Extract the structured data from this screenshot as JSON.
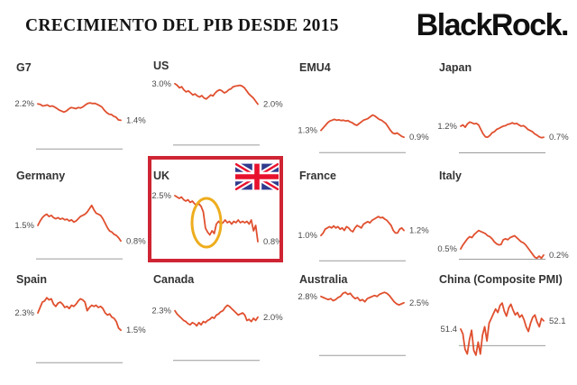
{
  "header": {
    "title": "CRECIMIENTO DEL PIB DESDE 2015",
    "logo_text": "BlackRock."
  },
  "colors": {
    "line": "#e0502f",
    "axis": "#9b9b9b",
    "highlight_box": "#cf2433",
    "circle": "#eead1e",
    "flag_blue": "#303b8e",
    "flag_red": "#e8112d"
  },
  "chart_data": [
    {
      "type": "line",
      "title": "G7",
      "unit": "%",
      "start_label": "2.2%",
      "end_label": "1.4%",
      "ylim": [
        -0.3,
        3.4
      ],
      "baseline": 0,
      "values": [
        2.2,
        2.18,
        2.1,
        2.12,
        2.15,
        2.08,
        2.1,
        2.05,
        1.98,
        1.9,
        1.85,
        1.8,
        1.85,
        1.95,
        2.02,
        2.0,
        1.97,
        2.02,
        2.0,
        2.05,
        2.15,
        2.22,
        2.25,
        2.22,
        2.23,
        2.18,
        2.12,
        2.05,
        1.9,
        1.78,
        1.7,
        1.68,
        1.6,
        1.55,
        1.42,
        1.4
      ]
    },
    {
      "type": "line",
      "title": "US",
      "unit": "%",
      "start_label": "3.0%",
      "end_label": "2.0%",
      "ylim": [
        -0.4,
        3.3
      ],
      "baseline": 0,
      "values": [
        3.0,
        2.92,
        2.8,
        2.85,
        2.7,
        2.6,
        2.65,
        2.55,
        2.45,
        2.5,
        2.4,
        2.35,
        2.42,
        2.3,
        2.25,
        2.35,
        2.45,
        2.4,
        2.55,
        2.65,
        2.7,
        2.65,
        2.55,
        2.6,
        2.7,
        2.75,
        2.85,
        2.88,
        2.9,
        2.92,
        2.88,
        2.8,
        2.65,
        2.5,
        2.4,
        2.3,
        2.15,
        2.0
      ]
    },
    {
      "type": "line",
      "title": "EMU4",
      "unit": "%",
      "start_label": "1.3%",
      "end_label": "0.9%",
      "ylim": [
        -0.15,
        4.3
      ],
      "baseline": 0,
      "values": [
        1.3,
        1.45,
        1.6,
        1.75,
        1.85,
        1.9,
        1.95,
        1.9,
        1.92,
        1.88,
        1.9,
        1.85,
        1.88,
        1.8,
        1.75,
        1.65,
        1.6,
        1.7,
        1.8,
        1.9,
        1.95,
        2.0,
        2.1,
        2.2,
        2.15,
        2.05,
        1.95,
        1.9,
        1.8,
        1.7,
        1.5,
        1.3,
        1.15,
        1.1,
        1.15,
        1.05,
        0.95,
        0.9
      ]
    },
    {
      "type": "line",
      "title": "Japan",
      "unit": "%",
      "start_label": "1.2%",
      "end_label": "0.7%",
      "ylim": [
        -0.1,
        3.3
      ],
      "baseline": 0,
      "values": [
        1.2,
        1.25,
        1.15,
        1.3,
        1.38,
        1.35,
        1.3,
        1.32,
        1.25,
        1.05,
        0.85,
        0.72,
        0.7,
        0.78,
        0.9,
        0.95,
        1.05,
        1.1,
        1.15,
        1.2,
        1.22,
        1.28,
        1.3,
        1.35,
        1.3,
        1.32,
        1.25,
        1.2,
        1.22,
        1.15,
        1.05,
        1.0,
        0.95,
        0.85,
        0.8,
        0.72,
        0.68,
        0.7
      ]
    },
    {
      "type": "line",
      "title": "Germany",
      "unit": "%",
      "start_label": "1.5%",
      "end_label": "0.8%",
      "ylim": [
        -0.2,
        3.2
      ],
      "baseline": 0,
      "values": [
        1.5,
        1.7,
        1.85,
        1.95,
        2.0,
        1.9,
        1.95,
        1.85,
        1.8,
        1.85,
        1.78,
        1.82,
        1.75,
        1.78,
        1.7,
        1.75,
        1.65,
        1.7,
        1.8,
        1.9,
        1.95,
        2.0,
        2.1,
        2.25,
        2.4,
        2.2,
        2.05,
        2.0,
        1.95,
        1.8,
        1.6,
        1.4,
        1.25,
        1.2,
        1.1,
        1.05,
        0.95,
        0.8
      ]
    },
    {
      "type": "line",
      "title": "UK",
      "unit": "%",
      "highlighted": true,
      "start_label": "2.5%",
      "end_label": "0.8%",
      "ylim": [
        0,
        2.8
      ],
      "baseline": null,
      "values": [
        2.5,
        2.45,
        2.4,
        2.45,
        2.35,
        2.3,
        2.35,
        2.25,
        2.3,
        2.2,
        2.15,
        2.2,
        2.1,
        1.9,
        1.3,
        1.15,
        1.05,
        1.2,
        1.1,
        1.45,
        1.55,
        1.45,
        1.5,
        1.6,
        1.5,
        1.55,
        1.45,
        1.55,
        1.5,
        1.6,
        1.5,
        1.55,
        1.5,
        1.55,
        1.45,
        1.6,
        1.2,
        1.4,
        0.8
      ]
    },
    {
      "type": "line",
      "title": "France",
      "unit": "%",
      "start_label": "1.0%",
      "end_label": "1.2%",
      "ylim": [
        -0.1,
        2.9
      ],
      "baseline": 0,
      "values": [
        1.0,
        1.1,
        1.25,
        1.3,
        1.35,
        1.3,
        1.38,
        1.3,
        1.35,
        1.25,
        1.3,
        1.2,
        1.35,
        1.3,
        1.2,
        1.15,
        1.3,
        1.4,
        1.35,
        1.3,
        1.45,
        1.5,
        1.55,
        1.5,
        1.6,
        1.65,
        1.7,
        1.75,
        1.7,
        1.72,
        1.65,
        1.6,
        1.5,
        1.4,
        1.2,
        1.1,
        1.1,
        1.25,
        1.3,
        1.2
      ]
    },
    {
      "type": "line",
      "title": "Italy",
      "unit": "%",
      "start_label": "0.5%",
      "end_label": "0.2%",
      "ylim": [
        -0.2,
        3.5
      ],
      "baseline": 0,
      "values": [
        0.5,
        0.7,
        0.85,
        1.0,
        1.1,
        1.05,
        1.2,
        1.3,
        1.4,
        1.35,
        1.3,
        1.25,
        1.15,
        1.1,
        1.0,
        0.85,
        0.75,
        0.7,
        0.72,
        0.95,
        1.0,
        0.95,
        1.05,
        1.1,
        1.15,
        1.05,
        0.95,
        0.85,
        0.8,
        0.7,
        0.55,
        0.4,
        0.25,
        0.1,
        0.05,
        0.15,
        0.05,
        0.2
      ]
    },
    {
      "type": "line",
      "title": "Spain",
      "unit": "%",
      "start_label": "2.3%",
      "end_label": "1.5%",
      "ylim": [
        -0.2,
        3.3
      ],
      "baseline": 0,
      "values": [
        2.3,
        2.55,
        2.8,
        2.85,
        3.0,
        2.9,
        2.95,
        2.7,
        2.6,
        2.75,
        2.8,
        2.7,
        2.55,
        2.6,
        2.5,
        2.65,
        2.6,
        2.7,
        2.85,
        2.95,
        2.9,
        2.8,
        2.4,
        2.55,
        2.65,
        2.6,
        2.65,
        2.55,
        2.6,
        2.5,
        2.3,
        2.2,
        2.25,
        2.1,
        2.05,
        1.9,
        1.6,
        1.5
      ]
    },
    {
      "type": "line",
      "title": "Canada",
      "unit": "%",
      "start_label": "2.3%",
      "end_label": "2.0%",
      "ylim": [
        -0.3,
        3.2
      ],
      "baseline": 0,
      "values": [
        2.3,
        2.15,
        2.05,
        1.95,
        1.85,
        1.8,
        1.7,
        1.65,
        1.75,
        1.7,
        1.6,
        1.75,
        1.65,
        1.8,
        1.75,
        1.85,
        1.9,
        2.0,
        1.95,
        2.1,
        2.15,
        2.25,
        2.3,
        2.45,
        2.55,
        2.5,
        2.4,
        2.3,
        2.2,
        2.1,
        2.15,
        2.2,
        2.1,
        1.85,
        1.9,
        1.8,
        1.95,
        1.85,
        2.0
      ]
    },
    {
      "type": "line",
      "title": "Australia",
      "unit": "%",
      "start_label": "2.8%",
      "end_label": "2.5%",
      "ylim": [
        -0.55,
        3.05
      ],
      "baseline": 0,
      "values": [
        2.8,
        2.75,
        2.7,
        2.65,
        2.7,
        2.6,
        2.65,
        2.75,
        2.8,
        2.95,
        3.0,
        2.9,
        2.95,
        2.8,
        2.7,
        2.75,
        2.6,
        2.65,
        2.55,
        2.7,
        2.75,
        2.8,
        2.85,
        2.8,
        2.9,
        2.95,
        3.0,
        2.95,
        2.85,
        2.7,
        2.55,
        2.45,
        2.4,
        2.45,
        2.5
      ]
    },
    {
      "type": "line",
      "title": "China (Composite PMI)",
      "unit": "PMI index",
      "start_label": "51.4",
      "end_label": "52.1",
      "ylim": [
        48.2,
        54.6
      ],
      "baseline": 50,
      "values": [
        51.4,
        51.0,
        49.7,
        49.3,
        50.5,
        51.3,
        49.6,
        49.2,
        50.3,
        49.3,
        50.9,
        51.6,
        50.4,
        51.9,
        52.3,
        52.7,
        53.1,
        52.8,
        53.4,
        53.6,
        52.9,
        52.5,
        53.2,
        53.5,
        53.0,
        52.6,
        52.8,
        52.4,
        52.6,
        52.2,
        51.6,
        51.2,
        51.9,
        52.4,
        52.6,
        52.0,
        51.6,
        52.3,
        52.1
      ]
    }
  ]
}
